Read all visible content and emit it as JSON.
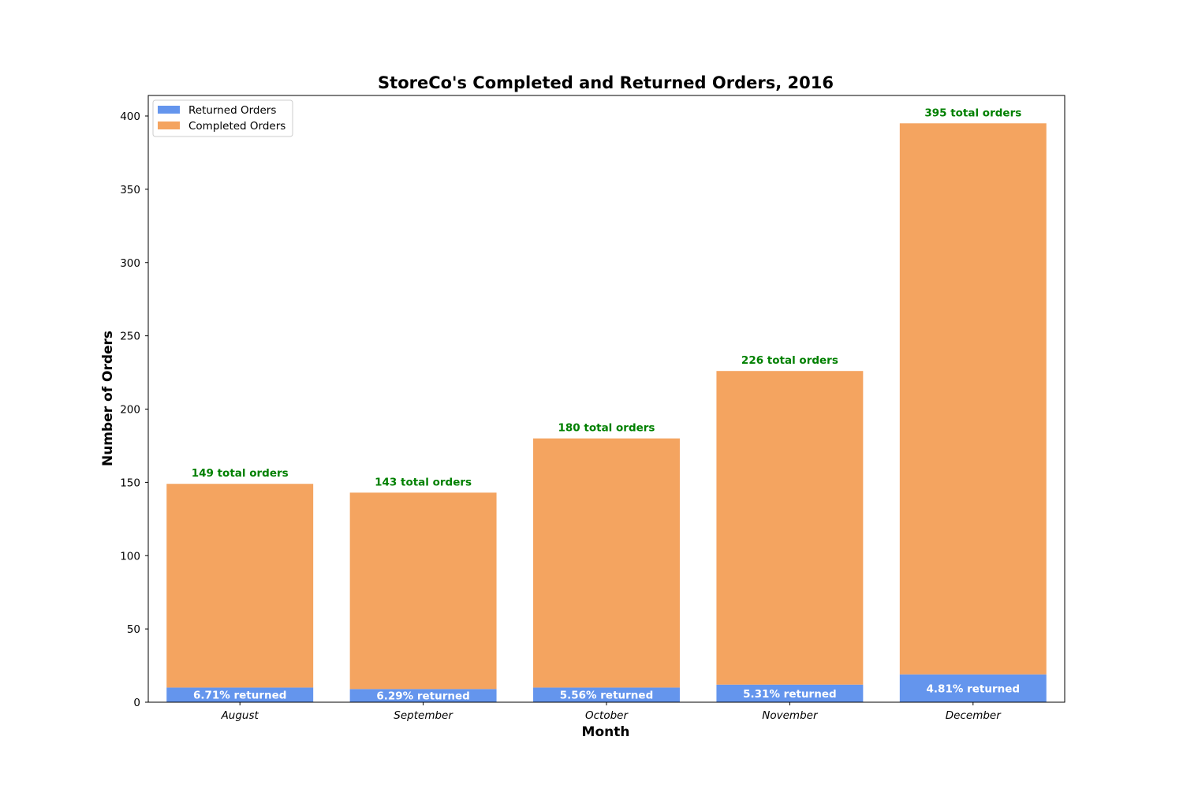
{
  "chart_data": {
    "type": "bar",
    "stacked": true,
    "title": "StoreCo's Completed and Returned Orders, 2016",
    "xlabel": "Month",
    "ylabel": "Number of Orders",
    "categories": [
      "August",
      "September",
      "October",
      "November",
      "December"
    ],
    "ylim": [
      0,
      414
    ],
    "yticks": [
      0,
      50,
      100,
      150,
      200,
      250,
      300,
      350,
      400
    ],
    "grid": false,
    "legend_position": "top-left",
    "series": [
      {
        "name": "Returned Orders",
        "values": [
          10,
          9,
          10,
          12,
          19
        ],
        "color": "#6495ED"
      },
      {
        "name": "Completed Orders",
        "values": [
          139,
          134,
          170,
          214,
          376
        ],
        "color": "#F4A460"
      }
    ],
    "totals": [
      149,
      143,
      180,
      226,
      395
    ],
    "total_labels": [
      "149 total orders",
      "143 total orders",
      "180 total orders",
      "226 total orders",
      "395 total orders"
    ],
    "return_labels": [
      "6.71% returned",
      "6.29% returned",
      "5.56% returned",
      "5.31% returned",
      "4.81% returned"
    ],
    "annotation_color": "#008000"
  }
}
